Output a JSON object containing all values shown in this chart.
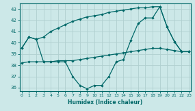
{
  "xlabel": "Humidex (Indice chaleur)",
  "ylabel": "",
  "bg_color": "#cce8e8",
  "line_color": "#006868",
  "grid_color": "#b0d0d0",
  "x": [
    0,
    1,
    2,
    3,
    4,
    5,
    6,
    7,
    8,
    9,
    10,
    11,
    12,
    13,
    14,
    15,
    16,
    17,
    18,
    19,
    20,
    21,
    22,
    23
  ],
  "line1": [
    39.5,
    40.5,
    40.3,
    40.5,
    41.0,
    41.3,
    41.6,
    41.9,
    42.1,
    42.3,
    42.4,
    42.5,
    42.7,
    42.8,
    42.9,
    43.0,
    43.1,
    43.1,
    43.2,
    43.2,
    41.4,
    40.1,
    39.2,
    39.2
  ],
  "line2": [
    39.5,
    40.5,
    40.3,
    38.3,
    38.3,
    38.3,
    38.3,
    37.0,
    36.2,
    35.9,
    36.2,
    36.2,
    37.0,
    38.3,
    38.5,
    40.2,
    41.7,
    42.2,
    42.2,
    43.2,
    41.4,
    40.1,
    39.2,
    39.2
  ],
  "line3": [
    38.2,
    38.3,
    38.3,
    38.3,
    38.3,
    38.4,
    38.4,
    38.4,
    38.5,
    38.6,
    38.7,
    38.8,
    38.9,
    39.0,
    39.1,
    39.2,
    39.3,
    39.4,
    39.5,
    39.5,
    39.4,
    39.3,
    39.2,
    39.2
  ],
  "xlim": [
    -0.3,
    23.3
  ],
  "ylim": [
    35.7,
    43.5
  ],
  "yticks": [
    36,
    37,
    38,
    39,
    40,
    41,
    42,
    43
  ],
  "xticks": [
    0,
    1,
    2,
    3,
    4,
    5,
    6,
    7,
    8,
    9,
    10,
    11,
    12,
    13,
    14,
    15,
    16,
    17,
    18,
    19,
    20,
    21,
    22,
    23
  ]
}
